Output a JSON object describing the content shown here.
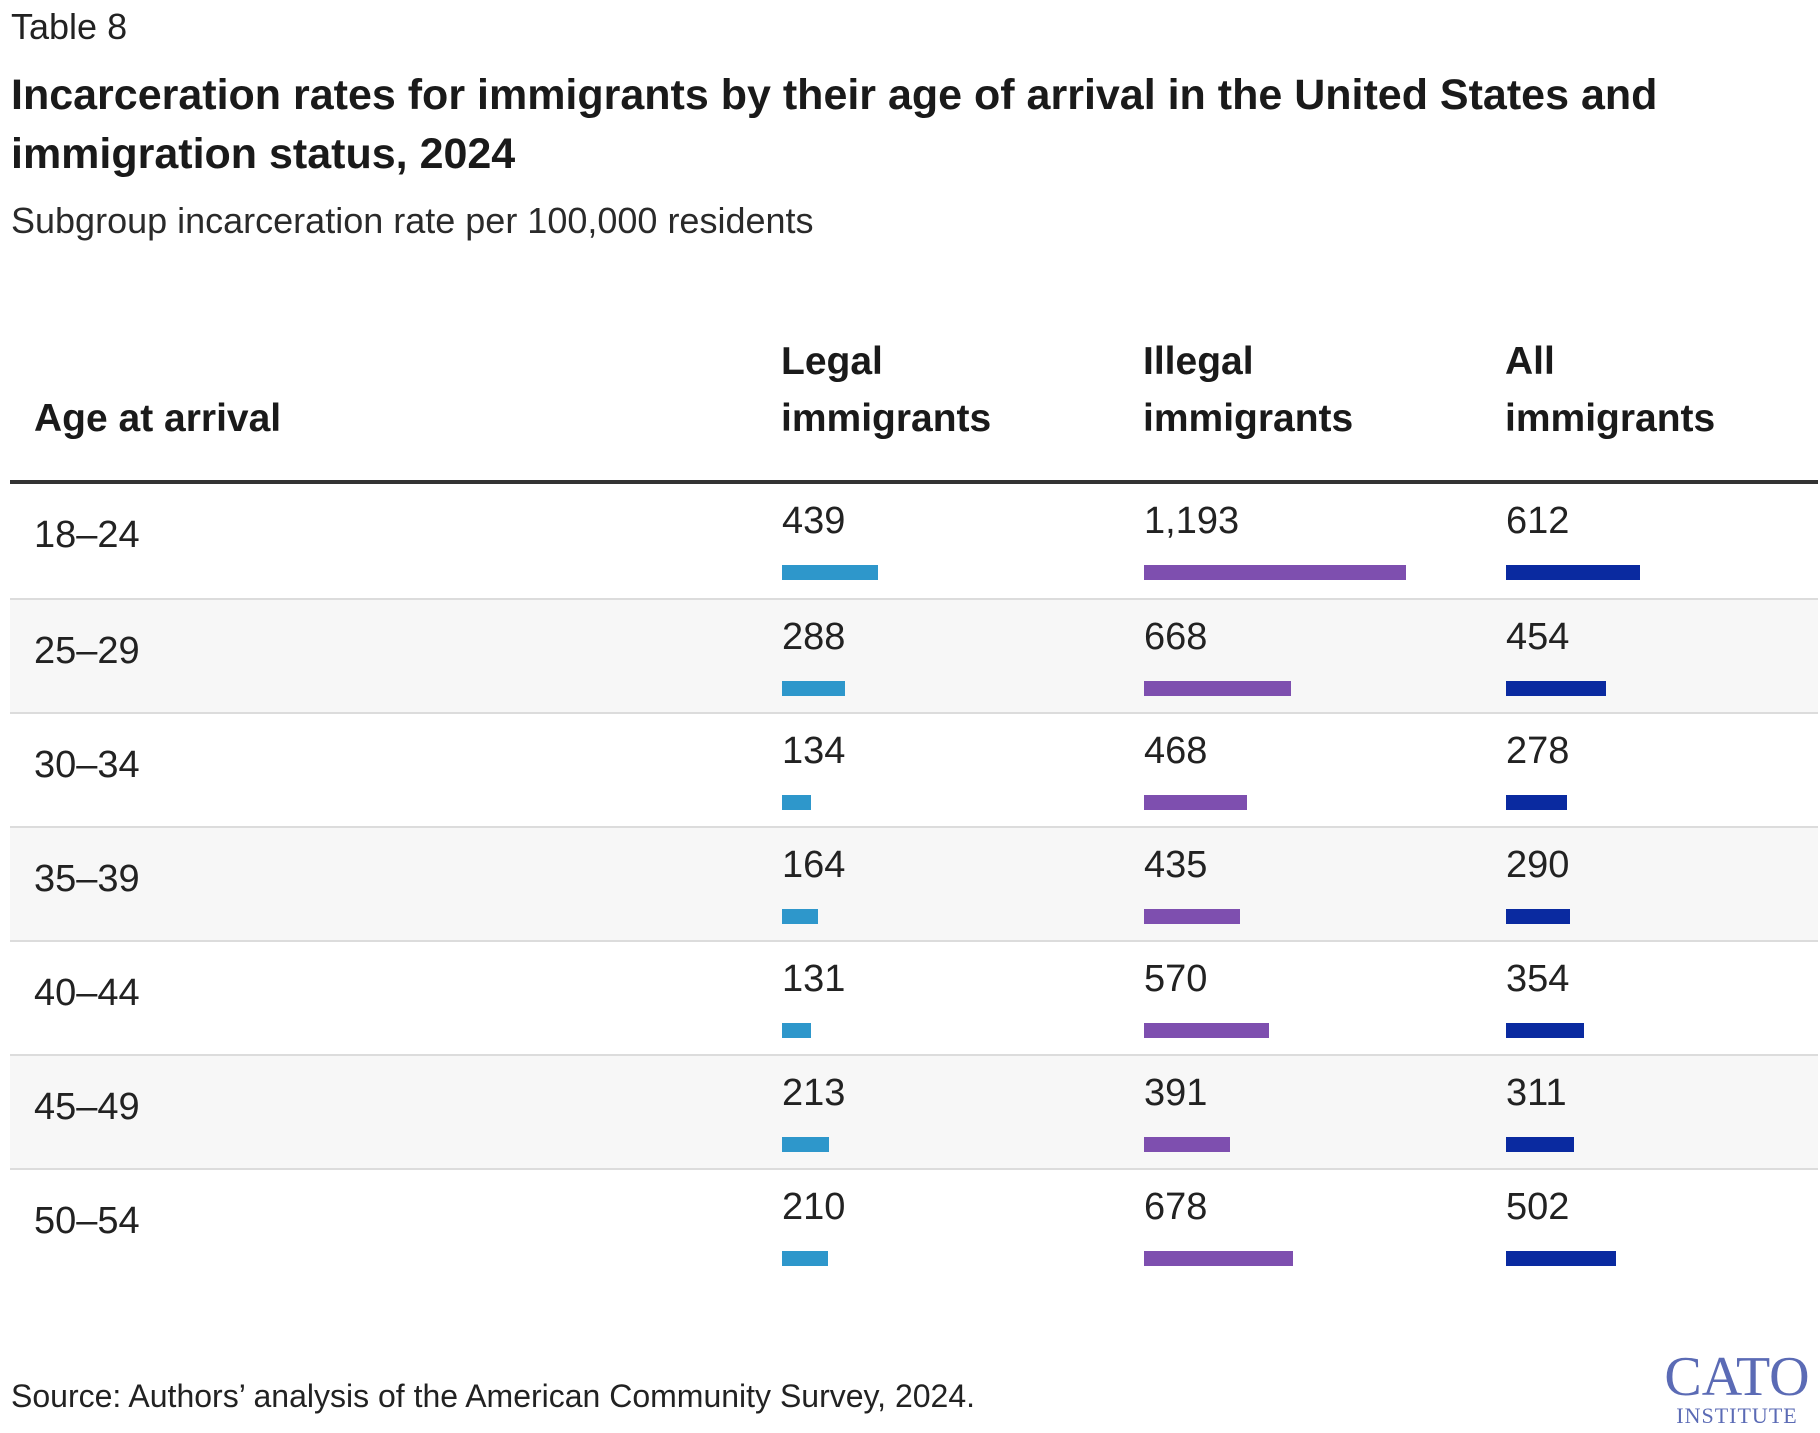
{
  "table_label": "Table 8",
  "title": "Incarceration rates for immigrants by their age of arrival in the United States and immigration status, 2024",
  "subtitle": "Subgroup incarceration rate per 100,000 residents",
  "columns": {
    "age": "Age at arrival",
    "legal": [
      "Legal",
      "immigrants"
    ],
    "illegal": [
      "Illegal",
      "immigrants"
    ],
    "all": [
      "All",
      "immigrants"
    ]
  },
  "colors": {
    "legal": "#2E97CB",
    "illegal": "#7E4FAF",
    "all": "#0A2AA0"
  },
  "chart_data": {
    "type": "table",
    "title": "Incarceration rates for immigrants by their age of arrival in the United States and immigration status, 2024",
    "subtitle": "Subgroup incarceration rate per 100,000 residents",
    "bar_scale_max": 1193,
    "categories": [
      "18–24",
      "25–29",
      "30–34",
      "35–39",
      "40–44",
      "45–49",
      "50–54"
    ],
    "series": [
      {
        "name": "Legal immigrants",
        "values": [
          439,
          288,
          134,
          164,
          131,
          213,
          210
        ],
        "labels": [
          "439",
          "288",
          "134",
          "164",
          "131",
          "213",
          "210"
        ]
      },
      {
        "name": "Illegal immigrants",
        "values": [
          1193,
          668,
          468,
          435,
          570,
          391,
          678
        ],
        "labels": [
          "1,193",
          "668",
          "468",
          "435",
          "570",
          "391",
          "678"
        ]
      },
      {
        "name": "All immigrants",
        "values": [
          612,
          454,
          278,
          290,
          354,
          311,
          502
        ],
        "labels": [
          "612",
          "454",
          "278",
          "290",
          "354",
          "311",
          "502"
        ]
      }
    ]
  },
  "source": "Source: Authors’ analysis of the American Community Survey, 2024.",
  "logo": {
    "name": "CATO",
    "subtitle": "INSTITUTE"
  }
}
